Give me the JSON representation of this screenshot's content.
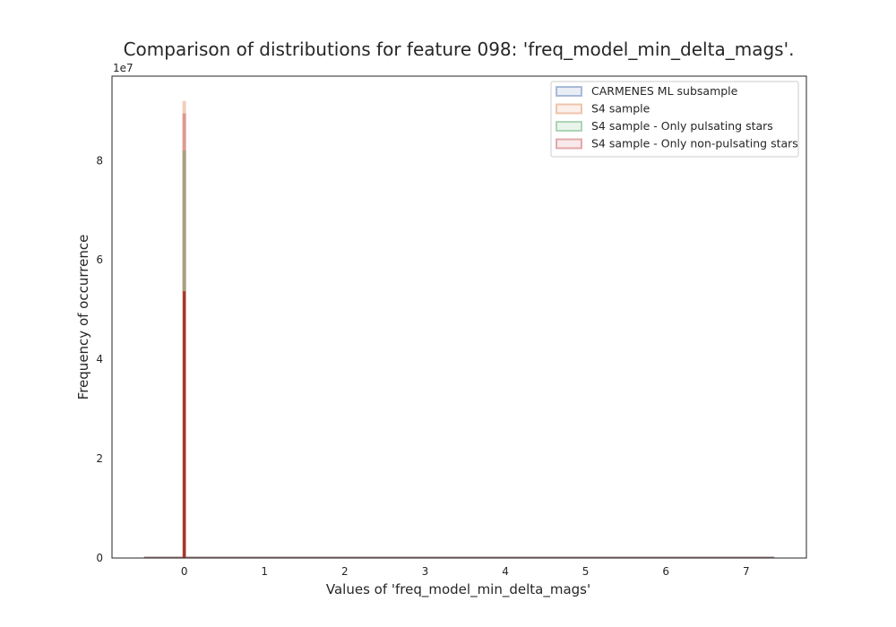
{
  "chart_data": {
    "type": "bar",
    "title": "Comparison of distributions for feature 098: 'freq_model_min_delta_mags'.",
    "xlabel": "Values of 'freq_model_min_delta_mags'",
    "ylabel": "Frequency of occurrence",
    "offset_label": "1e7",
    "xlim": [
      -0.9,
      7.75
    ],
    "ylim": [
      0,
      97000000
    ],
    "x_ticks": [
      0,
      1,
      2,
      3,
      4,
      5,
      6,
      7
    ],
    "y_ticks": [
      0,
      20000000,
      40000000,
      60000000,
      80000000
    ],
    "y_tick_labels": [
      "0",
      "2",
      "4",
      "6",
      "8"
    ],
    "grid": false,
    "legend_position": "top-right",
    "series": [
      {
        "name": "CARMENES ML subsample",
        "color": "#4c72b0",
        "x_range": [
          -0.5,
          7.35
        ],
        "peak_x": 0,
        "peak_value": 0
      },
      {
        "name": "S4 sample",
        "color": "#dd8452",
        "x_range": [
          -0.5,
          7.35
        ],
        "peak_x": 0,
        "peak_value": 92000000
      },
      {
        "name": "S4 sample - Only pulsating stars",
        "color": "#55a868",
        "x_range": [
          -0.5,
          7.35
        ],
        "peak_x": 0,
        "peak_value": 82000000
      },
      {
        "name": "S4 sample - Only non-pulsating stars",
        "color": "#c44e52",
        "x_range": [
          -0.5,
          7.35
        ],
        "peak_x": 0,
        "peak_value": 89500000
      }
    ]
  }
}
